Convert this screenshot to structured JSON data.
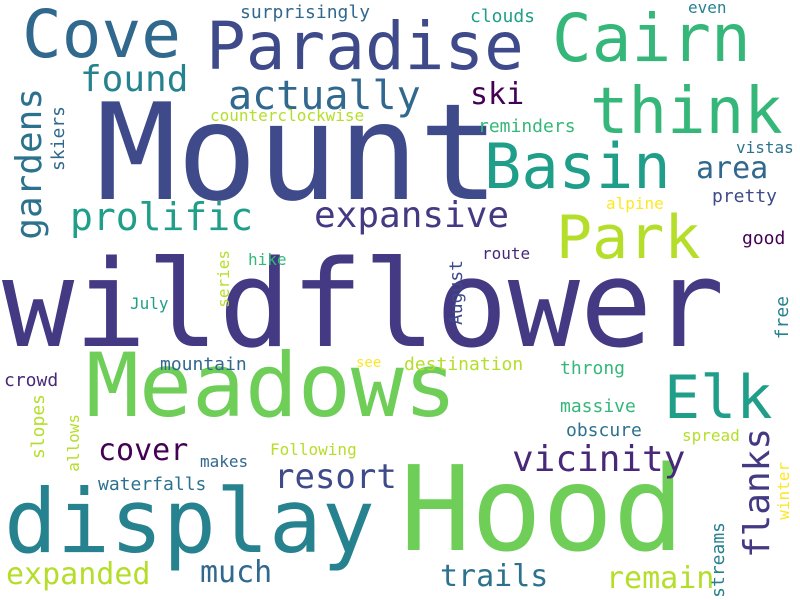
{
  "words": {
    "wildflower": "wildflower",
    "Mount": "Mount",
    "Hood": "Hood",
    "Meadows": "Meadows",
    "display": "display",
    "Paradise": "Paradise",
    "Cove": "Cove",
    "Cairn": "Cairn",
    "think": "think",
    "Basin": "Basin",
    "Park": "Park",
    "Elk": "Elk",
    "flanks": "flanks",
    "actually": "actually",
    "found": "found",
    "prolific": "prolific",
    "expansive": "expansive",
    "gardens": "gardens",
    "vicinity": "vicinity",
    "resort": "resort",
    "cover": "cover",
    "expanded": "expanded",
    "much": "much",
    "trails": "trails",
    "remain": "remain",
    "area": "area",
    "ski": "ski",
    "surprisingly": "surprisingly",
    "clouds": "clouds",
    "even": "even",
    "counterclockwise": "counterclockwise",
    "reminders": "reminders",
    "vistas": "vistas",
    "skiers": "skiers",
    "alpine": "alpine",
    "pretty": "pretty",
    "good": "good",
    "series": "series",
    "hike": "hike",
    "route": "route",
    "July": "July",
    "August": "August",
    "free": "free",
    "mountain": "mountain",
    "see": "see",
    "destination": "destination",
    "throng": "throng",
    "crowd": "crowd",
    "massive": "massive",
    "slopes": "slopes",
    "allows": "allows",
    "obscure": "obscure",
    "Following": "Following",
    "spread": "spread",
    "makes": "makes",
    "winter": "winter",
    "waterfalls": "waterfalls",
    "streams": "streams"
  },
  "colors": {
    "navy": "#3e4a89",
    "indigo": "#443983",
    "purple": "#482878",
    "dark": "#440154",
    "blue": "#31688e",
    "steel": "#2c728e",
    "teal": "#26828e",
    "aqua": "#1f9e89",
    "green": "#35b779",
    "lime": "#6ece58",
    "yellowgreen": "#b5de2b",
    "yellow": "#fde725"
  }
}
